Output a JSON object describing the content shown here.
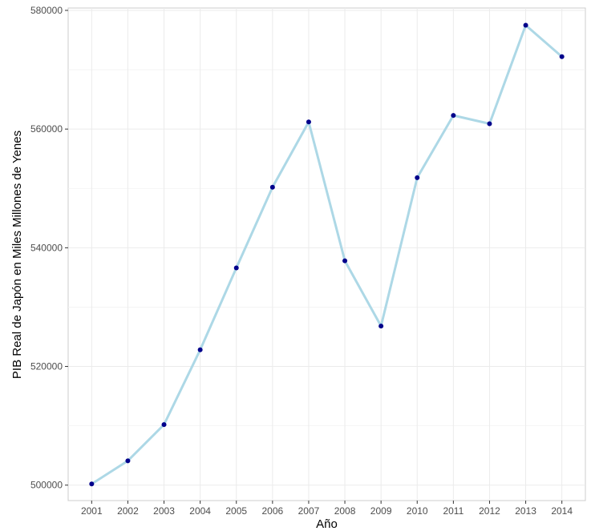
{
  "chart_data": {
    "type": "line",
    "title": "",
    "xlabel": "Año",
    "ylabel": "PIB Real de Japón en Miles Millones de Yenes",
    "x": [
      2001,
      2002,
      2003,
      2004,
      2005,
      2006,
      2007,
      2008,
      2009,
      2010,
      2011,
      2012,
      2013,
      2014
    ],
    "series": [
      {
        "values": [
          500200,
          504100,
          510200,
          522800,
          536600,
          550200,
          561200,
          537800,
          526800,
          551800,
          562300,
          560900,
          577500,
          572200
        ],
        "line_color": "#add8e6",
        "point_color": "#00008b"
      }
    ],
    "xlim": [
      2000.35,
      2014.65
    ],
    "ylim": [
      497400,
      580400
    ],
    "yticks": [
      500000,
      520000,
      540000,
      560000,
      580000
    ],
    "ytick_labels": [
      "500000",
      "520000",
      "540000",
      "560000",
      "580000"
    ],
    "xtick_labels": [
      "2001",
      "2002",
      "2003",
      "2004",
      "2005",
      "2006",
      "2007",
      "2008",
      "2009",
      "2010",
      "2011",
      "2012",
      "2013",
      "2014"
    ],
    "grid": true,
    "legend": "none"
  }
}
